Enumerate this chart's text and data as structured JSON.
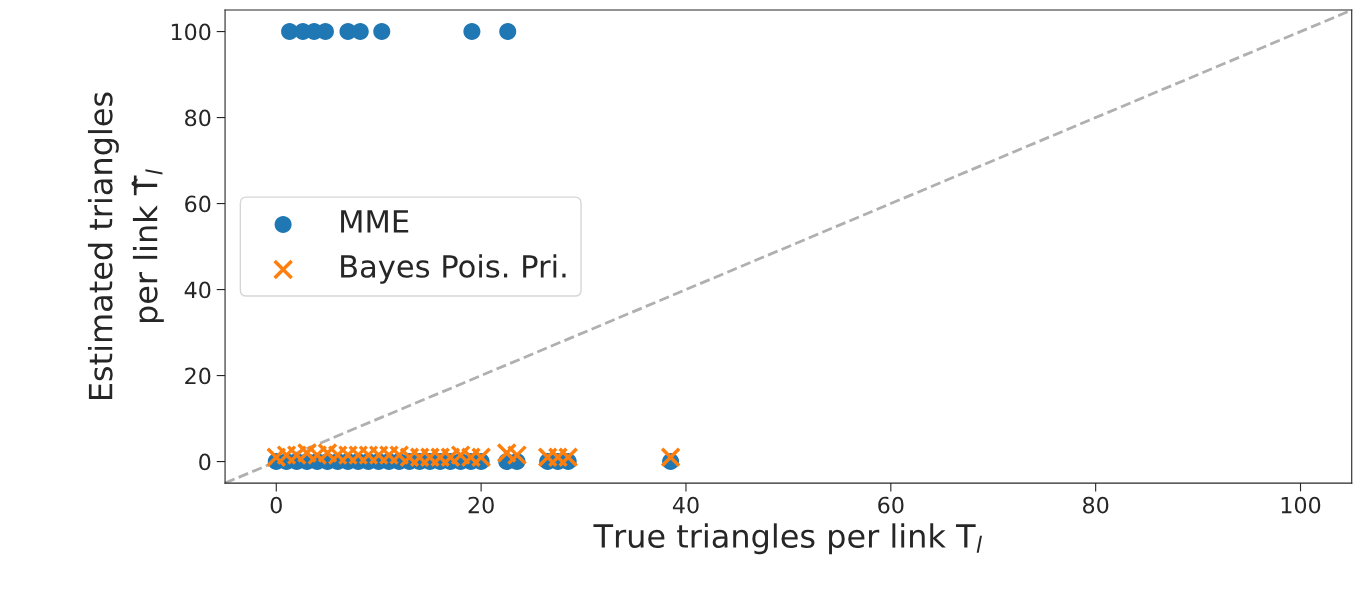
{
  "chart_data": {
    "type": "scatter",
    "xlabel": "True triangles per link T$_{l}$",
    "ylabel": "Estimated triangles\nper link T̂$_{l}$",
    "xlim": [
      -5,
      105
    ],
    "ylim": [
      -5,
      105
    ],
    "xticks": [
      0,
      20,
      40,
      60,
      80,
      100
    ],
    "yticks": [
      0,
      20,
      40,
      60,
      80,
      100
    ],
    "grid": false,
    "legend": "left",
    "series": [
      {
        "name": "MME",
        "color": "#1f77b4",
        "marker": "circle",
        "x": [
          1.3,
          2.6,
          3.7,
          4.8,
          7.0,
          8.2,
          10.3,
          19.1,
          22.6,
          0,
          1,
          2,
          3,
          4,
          5,
          6,
          7,
          8,
          9,
          10,
          11,
          12,
          13,
          14,
          15,
          16,
          17,
          18,
          19,
          20,
          22.5,
          23.5,
          26.5,
          27.5,
          28.5,
          38.5
        ],
        "values": [
          100,
          100,
          100,
          100,
          100,
          100,
          100,
          100,
          100,
          0,
          0,
          0,
          0,
          0,
          0,
          0,
          0,
          0,
          0,
          0,
          0,
          0,
          0,
          0,
          0,
          0,
          0,
          0,
          0,
          0,
          0,
          0,
          0,
          0,
          0,
          0
        ]
      },
      {
        "name": "Bayes Pois. Pri.",
        "color": "#ff7f0e",
        "marker": "cross",
        "x": [
          0,
          1,
          2,
          3,
          4,
          5,
          6,
          7,
          8,
          9,
          10,
          11,
          12,
          13,
          14,
          15,
          16,
          17,
          18,
          19,
          20,
          22.5,
          23.5,
          26.5,
          27.5,
          28.5,
          38.5
        ],
        "values": [
          1,
          1.5,
          1.5,
          2,
          1.5,
          2,
          1.5,
          1.5,
          1.5,
          1.5,
          1.5,
          1.5,
          1.5,
          1,
          1,
          1,
          1,
          1,
          1.5,
          1,
          1,
          2,
          1.5,
          1,
          1,
          1,
          1
        ]
      },
      {
        "type": "line",
        "color": "#b0b0b0",
        "line_style": "dashed",
        "marker": "none",
        "x": [
          -5,
          105
        ],
        "values": [
          -5,
          105
        ]
      }
    ]
  }
}
